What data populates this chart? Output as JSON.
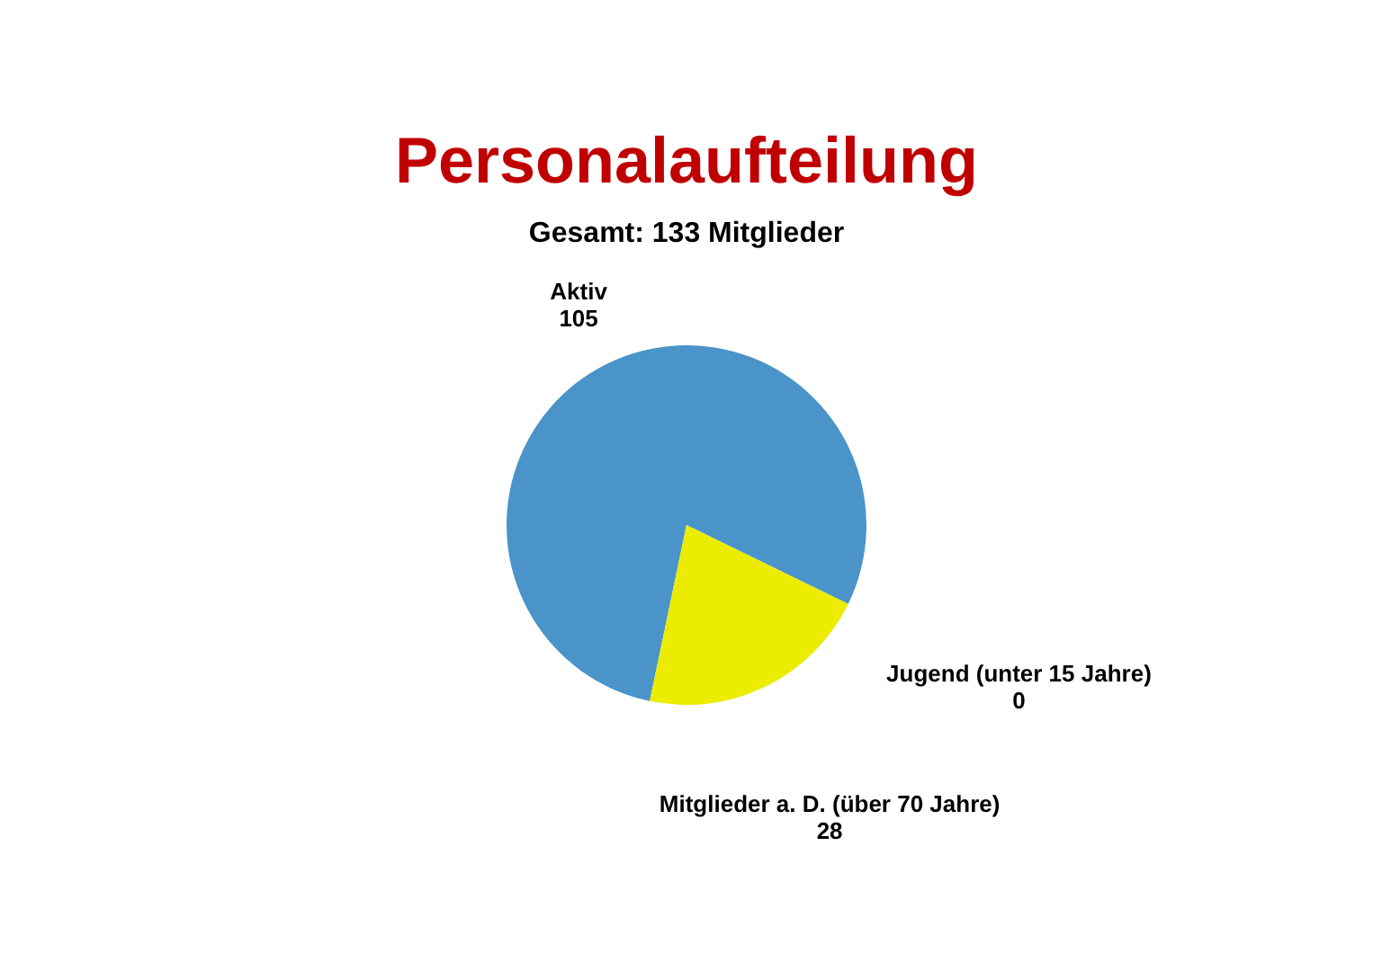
{
  "chart_data": {
    "type": "pie",
    "title": "Personalaufteilung",
    "subtitle": "Gesamt: 133 Mitglieder",
    "categories": [
      "Aktiv",
      "Mitglieder a. D. (über 70 Jahre)",
      "Jugend (unter 15 Jahre)"
    ],
    "values": [
      105,
      28,
      0
    ],
    "value_labels": [
      "105",
      "28",
      "0"
    ],
    "colors": [
      "#4a94c9",
      "#ecec00",
      "#1f4e79"
    ],
    "legend": false
  }
}
